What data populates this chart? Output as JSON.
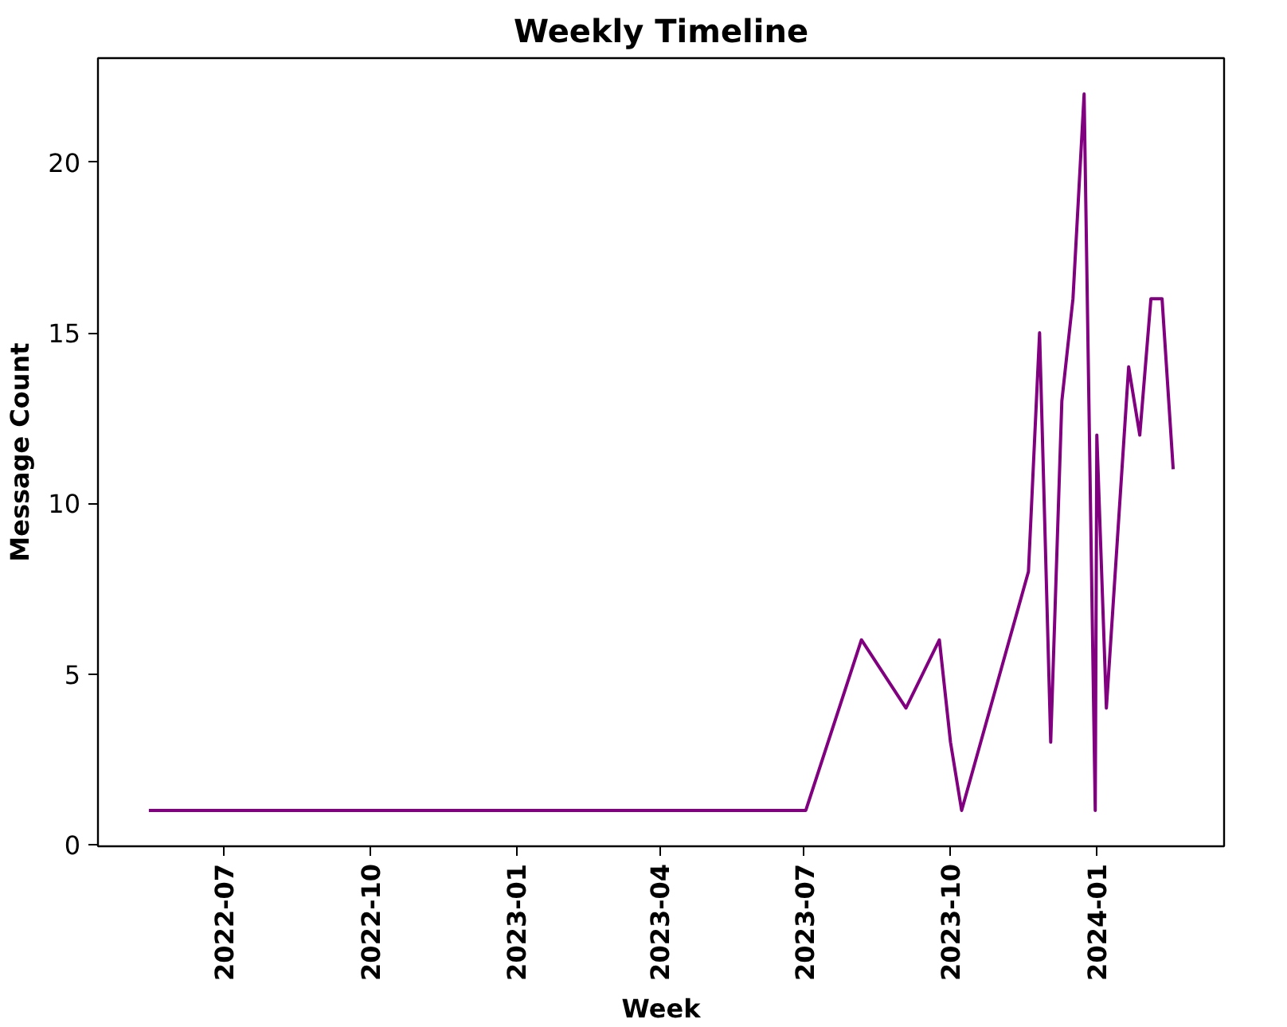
{
  "chart_data": {
    "type": "line",
    "title": "Weekly Timeline",
    "xlabel": "Week",
    "ylabel": "Message Count",
    "x": [
      "2022-05-15",
      "2023-07-02",
      "2023-08-06",
      "2023-09-03",
      "2023-09-24",
      "2023-10-01",
      "2023-10-08",
      "2023-11-19",
      "2023-11-26",
      "2023-12-03",
      "2023-12-10",
      "2023-12-17",
      "2023-12-24",
      "2023-12-31",
      "2024-01-01",
      "2024-01-07",
      "2024-01-14",
      "2024-01-21",
      "2024-01-28",
      "2024-02-04",
      "2024-02-11",
      "2024-02-18"
    ],
    "series": [
      {
        "color": "#800080",
        "values": [
          1,
          1,
          6,
          4,
          6,
          3,
          1,
          8,
          15,
          3,
          13,
          16,
          22,
          1,
          12,
          4,
          9,
          14,
          12,
          16,
          16,
          11
        ]
      }
    ],
    "xlim": [
      "2022-04-13",
      "2024-03-21"
    ],
    "xticks": [
      {
        "value": "2022-07-01",
        "label": "2022-07"
      },
      {
        "value": "2022-10-01",
        "label": "2022-10"
      },
      {
        "value": "2023-01-01",
        "label": "2023-01"
      },
      {
        "value": "2023-04-01",
        "label": "2023-04"
      },
      {
        "value": "2023-07-01",
        "label": "2023-07"
      },
      {
        "value": "2023-10-01",
        "label": "2023-10"
      },
      {
        "value": "2024-01-01",
        "label": "2024-01"
      }
    ],
    "ylim": [
      -0.05,
      23.05
    ],
    "yticks": [
      0,
      5,
      10,
      15,
      20
    ],
    "grid": false,
    "line_style": "solid"
  }
}
